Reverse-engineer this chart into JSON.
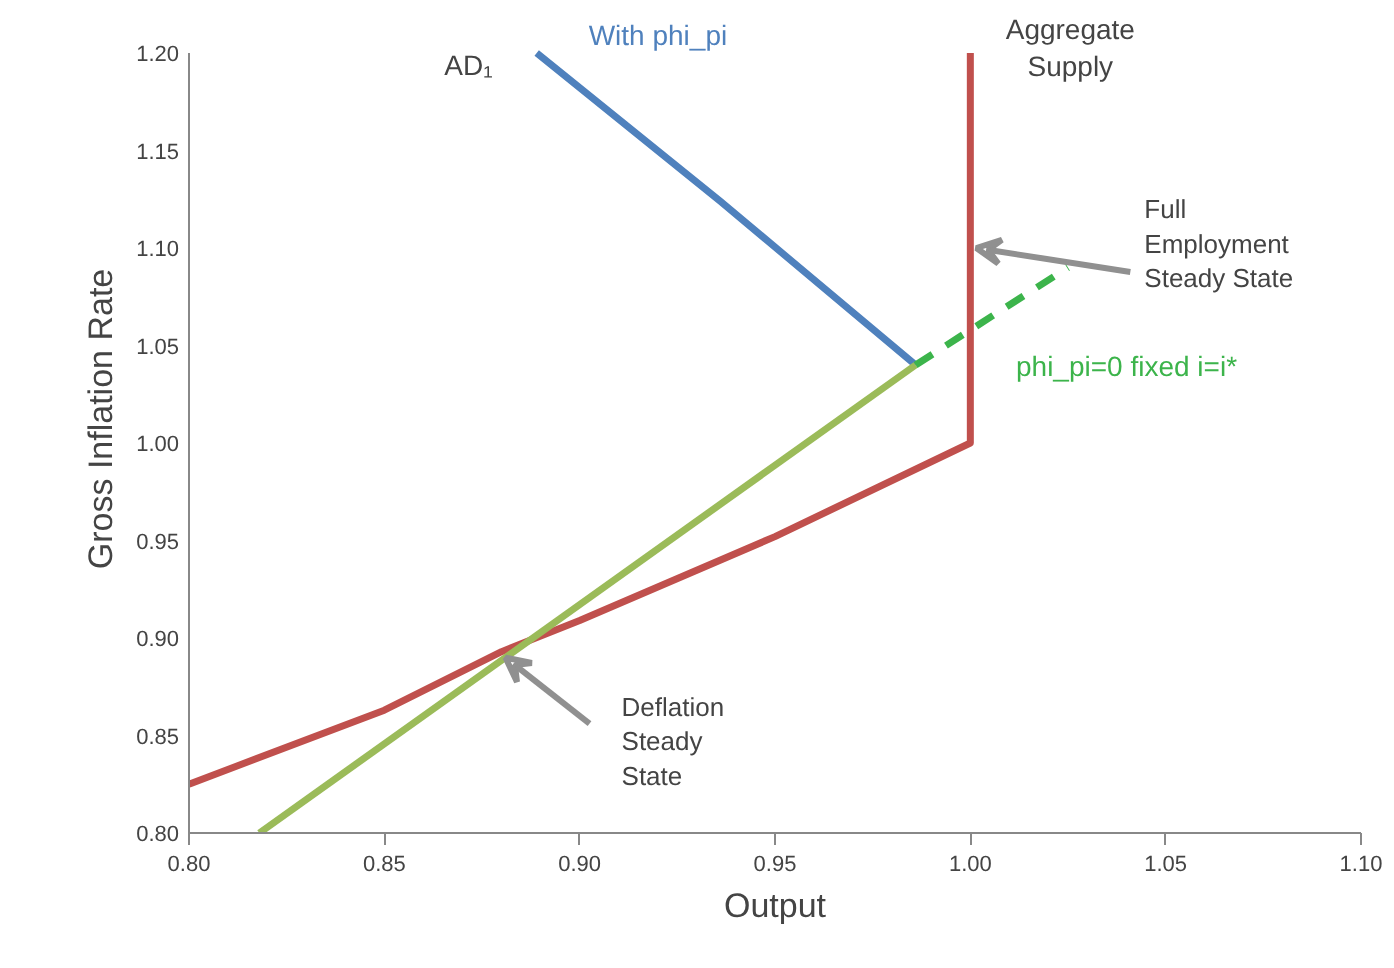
{
  "chart_data": {
    "type": "line",
    "xlabel": "Output",
    "ylabel": "Gross Inflation Rate",
    "xlim": [
      0.8,
      1.1
    ],
    "ylim": [
      0.8,
      1.2
    ],
    "xticks": [
      {
        "value": 0.8,
        "label": "0.80"
      },
      {
        "value": 0.85,
        "label": "0.85"
      },
      {
        "value": 0.9,
        "label": "0.90"
      },
      {
        "value": 0.95,
        "label": "0.95"
      },
      {
        "value": 1.0,
        "label": "1.00"
      },
      {
        "value": 1.05,
        "label": "1.05"
      },
      {
        "value": 1.1,
        "label": "1.10"
      }
    ],
    "yticks": [
      {
        "value": 0.8,
        "label": "0.80"
      },
      {
        "value": 0.85,
        "label": "0.85"
      },
      {
        "value": 0.9,
        "label": "0.90"
      },
      {
        "value": 0.95,
        "label": "0.95"
      },
      {
        "value": 1.0,
        "label": "1.00"
      },
      {
        "value": 1.05,
        "label": "1.05"
      },
      {
        "value": 1.1,
        "label": "1.10"
      },
      {
        "value": 1.15,
        "label": "1.15"
      },
      {
        "value": 1.2,
        "label": "1.20"
      }
    ],
    "grid": false,
    "legend": false,
    "series": [
      {
        "color": "#c0504d",
        "x": [
          0.8,
          0.85,
          0.88,
          0.9,
          0.95,
          1.0,
          1.0
        ],
        "values": [
          0.825,
          0.863,
          0.893,
          0.909,
          0.952,
          1.0,
          1.2
        ]
      },
      {
        "name": "With phi_pi",
        "color": "#4f81bd",
        "x": [
          0.889,
          0.936,
          0.986
        ],
        "values": [
          1.2,
          1.124,
          1.04
        ]
      },
      {
        "color": "#9bbb59",
        "x": [
          0.818,
          0.986
        ],
        "values": [
          0.8,
          1.04
        ]
      },
      {
        "name": "phi_pi=0 fixed i=i*",
        "color": "#3cb44b",
        "line_style": "dashed",
        "x": [
          0.986,
          1.025
        ],
        "values": [
          1.04,
          1.09
        ]
      }
    ],
    "annotations": [
      {
        "text": "AD₁",
        "x": 0.889,
        "y": 1.2
      },
      {
        "text": "Aggregate Supply",
        "x": 1.0,
        "y": 1.2
      },
      {
        "text": "Full Employment Steady State",
        "x": 1.0,
        "y": 1.1
      },
      {
        "text": "Deflation Steady State",
        "x": 0.88,
        "y": 0.893
      }
    ]
  }
}
